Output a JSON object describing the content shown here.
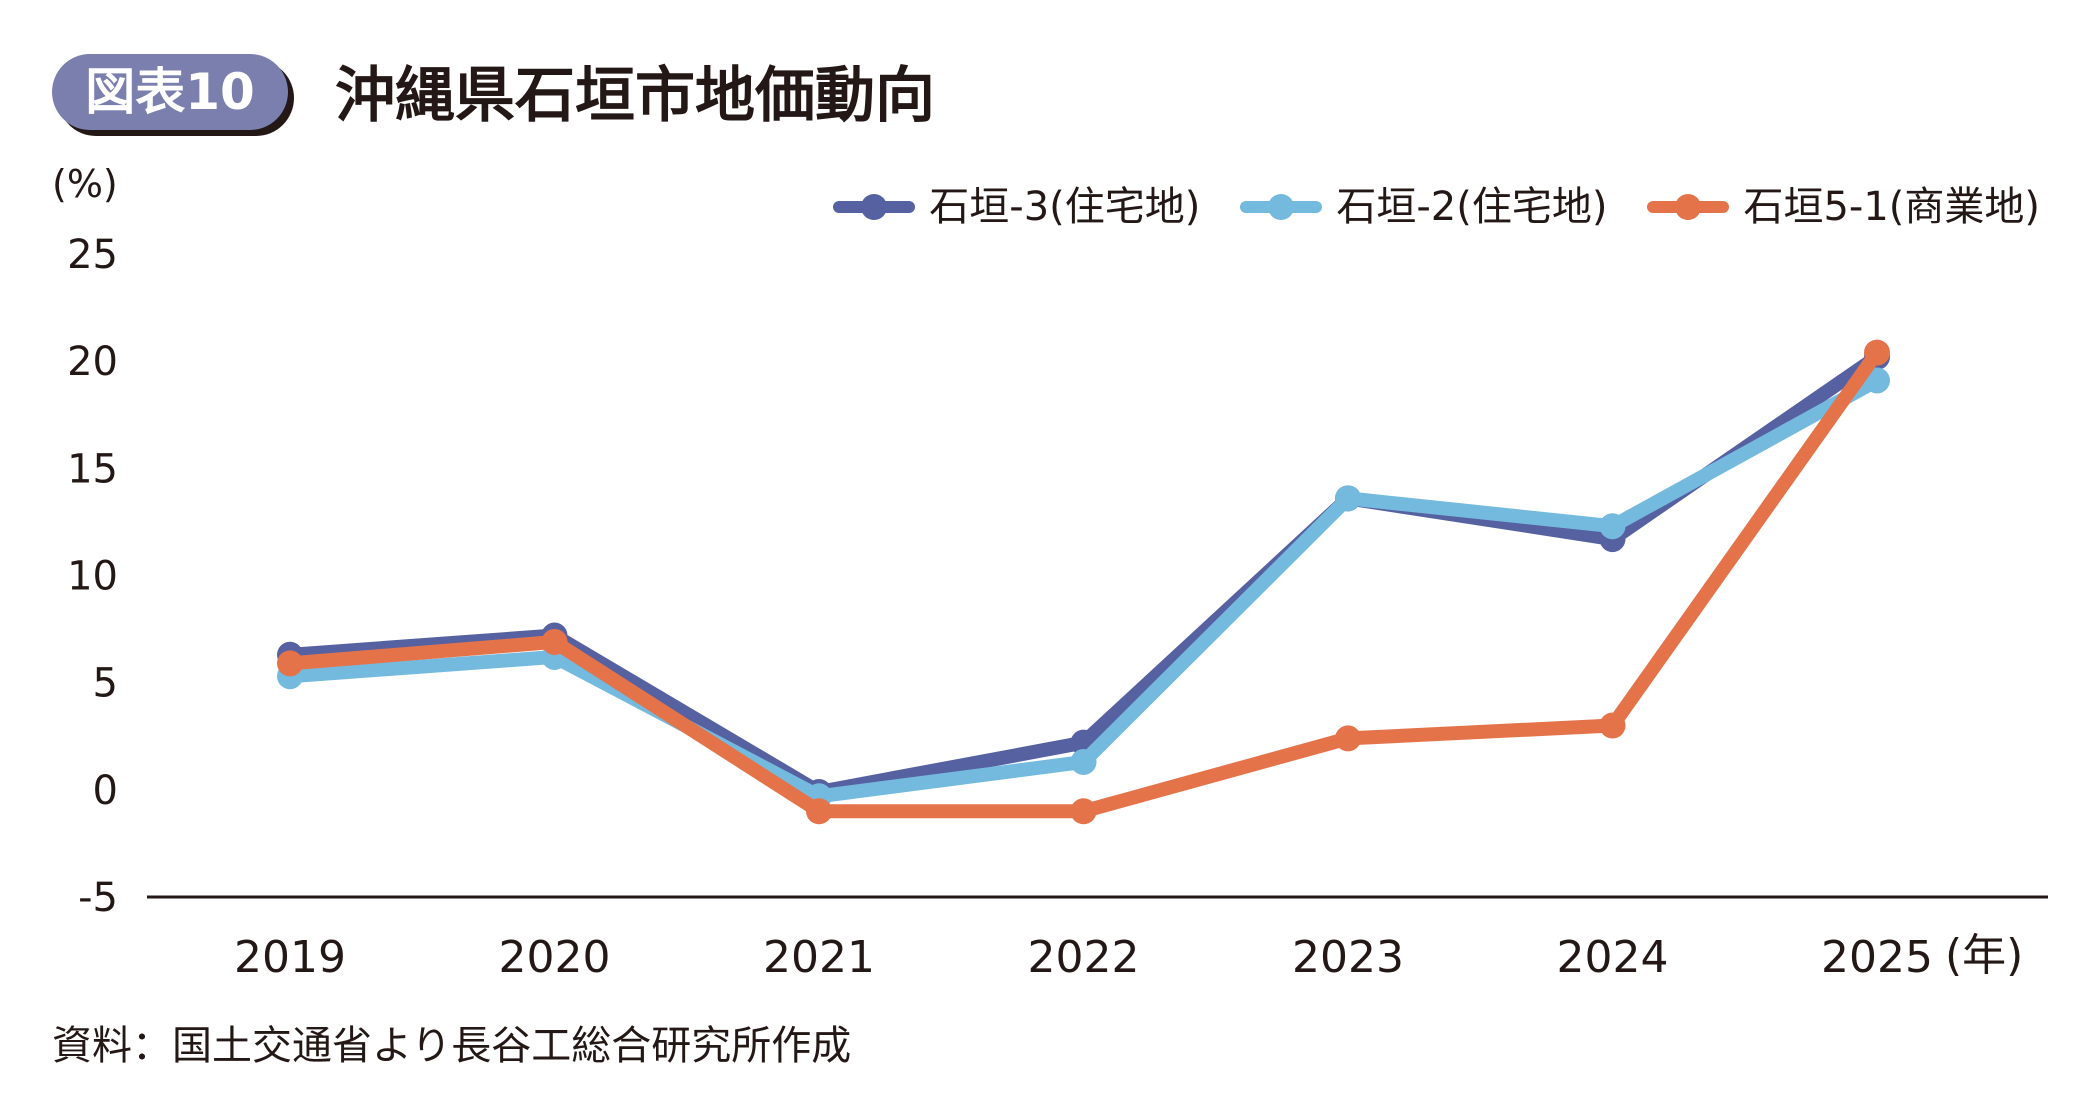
{
  "figure_label": "図表10",
  "title": "沖縄県石垣市地価動向",
  "source": "資料：国土交通省より長谷工総合研究所作成",
  "chart_data": {
    "type": "line",
    "title": "沖縄県石垣市地価動向",
    "ylabel": "(%)",
    "xlabel": "(年)",
    "x": [
      "2019",
      "2020",
      "2021",
      "2022",
      "2023",
      "2024",
      "2025"
    ],
    "ylim": [
      -5,
      25
    ],
    "yticks": [
      "25",
      "20",
      "15",
      "10",
      "5",
      "0",
      "-5"
    ],
    "ytick_values": [
      25,
      20,
      15,
      10,
      5,
      0,
      -5
    ],
    "grid": false,
    "legend_position": "top-right",
    "series": [
      {
        "name": "石垣-3(住宅地)",
        "color": "#5561a0",
        "values": [
          6.3,
          7.2,
          -0.1,
          2.2,
          13.6,
          11.7,
          20.2
        ]
      },
      {
        "name": "石垣-2(住宅地)",
        "color": "#74bade",
        "values": [
          5.3,
          6.2,
          -0.3,
          1.3,
          13.6,
          12.3,
          19.1
        ]
      },
      {
        "name": "石垣5-1(商業地)",
        "color": "#e4734a",
        "values": [
          5.9,
          6.9,
          -1.0,
          -1.0,
          2.4,
          3.0,
          20.4
        ]
      }
    ]
  }
}
